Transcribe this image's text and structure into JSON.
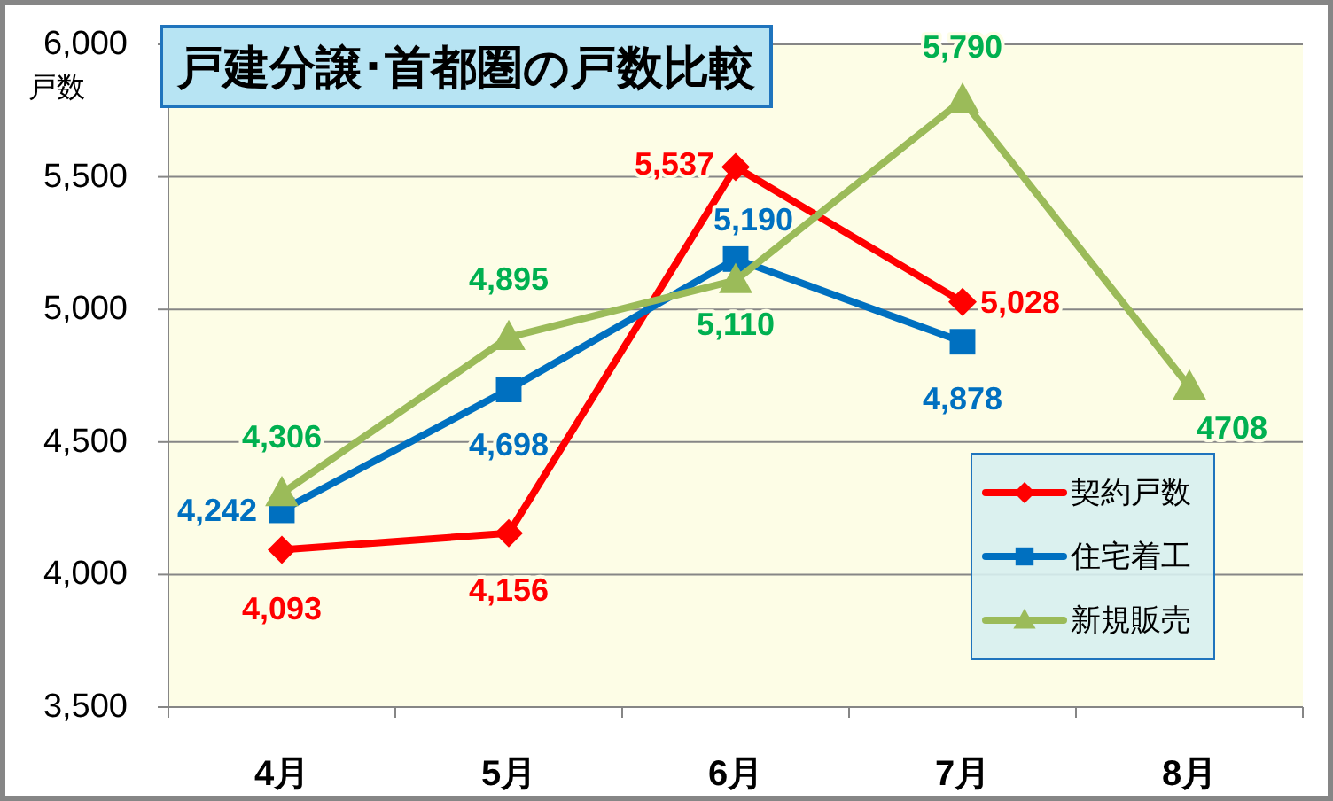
{
  "chart_data": {
    "type": "line",
    "title": "戸建分譲･首都圏の戸数比較",
    "ylabel": "戸数",
    "categories": [
      "4月",
      "5月",
      "6月",
      "7月",
      "8月"
    ],
    "series": [
      {
        "name": "契約戸数",
        "color": "#ff0000",
        "marker": "diamond",
        "values": [
          4093,
          4156,
          5537,
          5028,
          null
        ],
        "value_labels": [
          "4,093",
          "4,156",
          "5,537",
          "5,028",
          null
        ]
      },
      {
        "name": "住宅着工",
        "color": "#0070c0",
        "marker": "square",
        "values": [
          4242,
          4698,
          5190,
          4878,
          null
        ],
        "value_labels": [
          "4,242",
          "4,698",
          "5,190",
          "4,878",
          null
        ]
      },
      {
        "name": "新規販売",
        "color": "#9bbb59",
        "marker": "triangle",
        "values": [
          4306,
          4895,
          5110,
          5790,
          4708
        ],
        "value_labels": [
          "4,306",
          "4,895",
          "5,110",
          "5,790",
          "4708"
        ]
      }
    ],
    "ylim": [
      3500,
      6000
    ],
    "yticks": [
      {
        "value": 3500,
        "label": "3,500"
      },
      {
        "value": 4000,
        "label": "4,000"
      },
      {
        "value": 4500,
        "label": "4,500"
      },
      {
        "value": 5000,
        "label": "5,000"
      },
      {
        "value": 5500,
        "label": "5,500"
      },
      {
        "value": 6000,
        "label": "6,000"
      }
    ],
    "grid": "y",
    "legend": "bottom right",
    "line_style": "solid"
  }
}
